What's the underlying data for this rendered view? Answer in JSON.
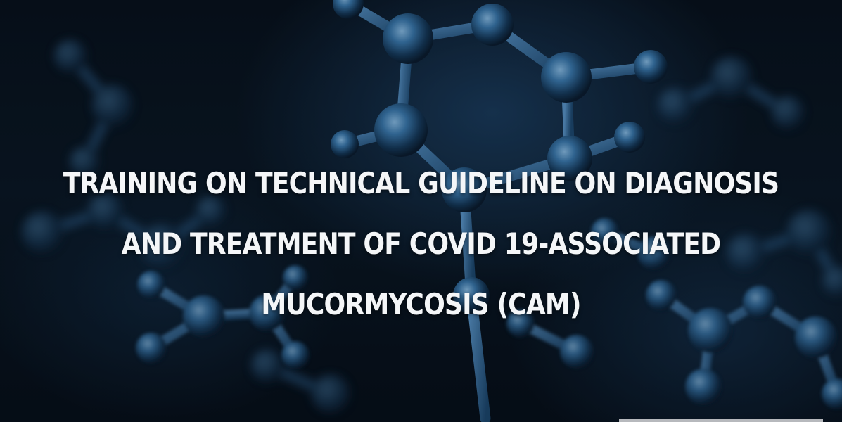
{
  "title": {
    "lines": [
      "TRAINING ON TECHNICAL GUIDELINE ON DIAGNOSIS",
      "AND TREATMENT OF COVID 19-ASSOCIATED",
      "MUCORMYCOSIS (CAM)"
    ]
  },
  "background": {
    "image": "blue-molecule-structure",
    "colors": {
      "base": "#07101b",
      "bond": "#3e7fb6",
      "atom": "#2f6da3",
      "highlight": "#8fc4ee"
    }
  }
}
